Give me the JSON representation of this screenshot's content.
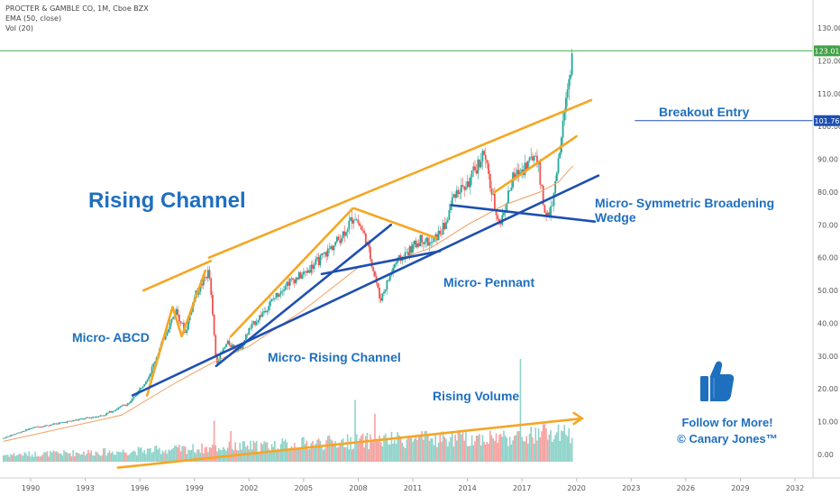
{
  "header": {
    "symbol_line": "PROCTER & GAMBLE CO, 1M, Cboe BZX",
    "ema_line": "EMA (50, close)",
    "vol_line": "Vol (20)"
  },
  "price_badges": {
    "last": "123.01",
    "entry": "101.76"
  },
  "annotations": {
    "rising_channel": "Rising Channel",
    "micro_abcd": "Micro- ABCD",
    "micro_rising_channel": "Micro- Rising Channel",
    "micro_pennant": "Micro- Pennant",
    "micro_wedge_line1": "Micro- Symmetric Broadening",
    "micro_wedge_line2": "Wedge",
    "breakout_entry": "Breakout Entry",
    "rising_volume": "Rising Volume",
    "follow_line1": "Follow for More!",
    "follow_line2": "© Canary Jones™"
  },
  "icons": {
    "thumbs_up": "thumbs-up-icon"
  },
  "colors": {
    "orange": "#f5a623",
    "blue": "#1e4fb0",
    "label_blue": "#1f6fbf",
    "candle_up": "#26a69a",
    "candle_down": "#ef5350",
    "ema": "#f0a060",
    "green_line": "#4caf50"
  },
  "chart_data": {
    "type": "candlestick",
    "title": "",
    "x_ticks": [
      "1990",
      "1993",
      "1996",
      "1999",
      "2002",
      "2005",
      "2008",
      "2011",
      "2014",
      "2017",
      "2020",
      "2023",
      "2026",
      "2029",
      "2032"
    ],
    "y_ticks": [
      "0.00",
      "10.00",
      "20.00",
      "30.00",
      "40.00",
      "50.00",
      "60.00",
      "70.00",
      "80.00",
      "90.00",
      "100.00",
      "110.00",
      "120.00",
      "130.00"
    ],
    "ylim": [
      -3,
      135
    ],
    "xlim": [
      1988.5,
      2033
    ],
    "price_path": [
      [
        1988.5,
        5
      ],
      [
        1990,
        8
      ],
      [
        1992,
        10
      ],
      [
        1994,
        12
      ],
      [
        1995.5,
        16
      ],
      [
        1996.5,
        24
      ],
      [
        1997.5,
        38
      ],
      [
        1998,
        44
      ],
      [
        1998.5,
        37
      ],
      [
        1999,
        48
      ],
      [
        1999.8,
        56
      ],
      [
        2000.2,
        28
      ],
      [
        2000.8,
        34
      ],
      [
        2001.5,
        32
      ],
      [
        2002,
        38
      ],
      [
        2003,
        45
      ],
      [
        2004,
        52
      ],
      [
        2005,
        55
      ],
      [
        2006,
        60
      ],
      [
        2007,
        66
      ],
      [
        2007.8,
        73
      ],
      [
        2008.4,
        66
      ],
      [
        2008.9,
        55
      ],
      [
        2009.2,
        47
      ],
      [
        2010,
        58
      ],
      [
        2010.8,
        62
      ],
      [
        2011.5,
        66
      ],
      [
        2012,
        64
      ],
      [
        2012.8,
        70
      ],
      [
        2013.3,
        80
      ],
      [
        2014,
        82
      ],
      [
        2014.9,
        92
      ],
      [
        2015.4,
        78
      ],
      [
        2015.8,
        70
      ],
      [
        2016.5,
        84
      ],
      [
        2017.2,
        88
      ],
      [
        2017.8,
        92
      ],
      [
        2018.2,
        75
      ],
      [
        2018.5,
        72
      ],
      [
        2018.9,
        84
      ],
      [
        2019.2,
        98
      ],
      [
        2019.5,
        112
      ],
      [
        2019.8,
        123
      ]
    ],
    "ema_path": [
      [
        1988.5,
        4
      ],
      [
        1995,
        12
      ],
      [
        1998,
        22
      ],
      [
        2000,
        28
      ],
      [
        2002,
        33
      ],
      [
        2005,
        44
      ],
      [
        2008,
        57
      ],
      [
        2010,
        59
      ],
      [
        2012,
        63
      ],
      [
        2014,
        70
      ],
      [
        2016,
        76
      ],
      [
        2018,
        80
      ],
      [
        2019,
        83
      ],
      [
        2019.8,
        88
      ]
    ],
    "volume_range": [
      0,
      30
    ],
    "volume_profile": [
      [
        1988.5,
        2
      ],
      [
        1995,
        3
      ],
      [
        2000,
        4
      ],
      [
        2008,
        6
      ],
      [
        2015,
        7
      ],
      [
        2019.8,
        8
      ]
    ],
    "volume_spikes": [
      [
        2000.1,
        12
      ],
      [
        2001,
        9
      ],
      [
        2007.8,
        18
      ],
      [
        2008.9,
        14
      ],
      [
        2016.9,
        30
      ],
      [
        2018.2,
        11
      ]
    ],
    "trendlines": [
      {
        "color": "orange",
        "points": [
          [
            1996.2,
            50
          ],
          [
            1999.9,
            59
          ]
        ]
      },
      {
        "color": "orange",
        "points": [
          [
            1996.4,
            18
          ],
          [
            1997.8,
            45
          ],
          [
            1998.3,
            36
          ],
          [
            1999.6,
            56
          ]
        ]
      },
      {
        "color": "orange",
        "points": [
          [
            2001,
            36
          ],
          [
            2007.7,
            75
          ]
        ]
      },
      {
        "color": "orange",
        "points": [
          [
            2007.8,
            75
          ],
          [
            2012.3,
            66
          ]
        ]
      },
      {
        "color": "orange",
        "points": [
          [
            1999.8,
            60
          ],
          [
            2020.8,
            108
          ]
        ]
      },
      {
        "color": "orange",
        "points": [
          [
            2015.5,
            80
          ],
          [
            2020,
            97
          ]
        ]
      },
      {
        "color": "orange",
        "points": [
          [
            1994.8,
            -4
          ],
          [
            2020.3,
            11
          ]
        ]
      },
      {
        "color": "blue",
        "points": [
          [
            1995.6,
            18
          ],
          [
            2021.2,
            85
          ]
        ]
      },
      {
        "color": "blue",
        "points": [
          [
            2000.2,
            27
          ],
          [
            2009.8,
            70
          ]
        ]
      },
      {
        "color": "blue",
        "points": [
          [
            2006,
            55
          ],
          [
            2012.5,
            62
          ]
        ]
      },
      {
        "color": "blue",
        "points": [
          [
            2013.1,
            76
          ],
          [
            2021,
            71
          ]
        ]
      }
    ],
    "horizontal_lines": [
      {
        "value": 123.01,
        "color": "green_line"
      },
      {
        "value": 101.76,
        "color": "blue",
        "from_x": 2023.2
      }
    ]
  }
}
